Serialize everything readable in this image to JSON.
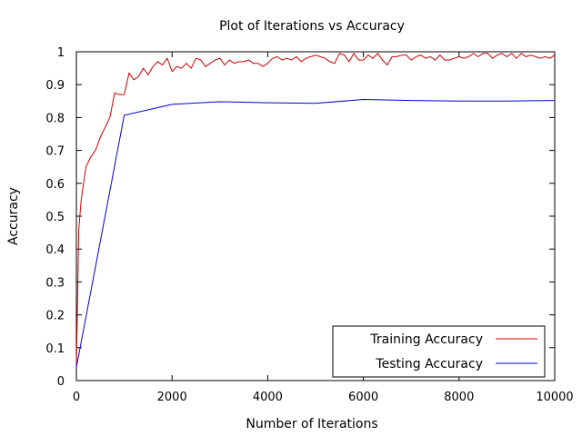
{
  "chart_data": {
    "type": "line",
    "title": "Plot of Iterations vs Accuracy",
    "xlabel": "Number of Iterations",
    "ylabel": "Accuracy",
    "xlim": [
      0,
      10000
    ],
    "ylim": [
      0,
      1
    ],
    "xticks": [
      0,
      2000,
      4000,
      6000,
      8000,
      10000
    ],
    "yticks": [
      0,
      0.1,
      0.2,
      0.3,
      0.4,
      0.5,
      0.6,
      0.7,
      0.8,
      0.9,
      1
    ],
    "grid": false,
    "legend_position": "bottom-right",
    "series": [
      {
        "name": "Training Accuracy",
        "color": "#cc0000",
        "x": [
          0,
          50,
          100,
          200,
          300,
          400,
          500,
          600,
          700,
          800,
          900,
          1000,
          1100,
          1200,
          1300,
          1400,
          1500,
          1600,
          1700,
          1800,
          1900,
          2000,
          2100,
          2200,
          2300,
          2400,
          2500,
          2600,
          2700,
          2800,
          2900,
          3000,
          3100,
          3200,
          3300,
          3400,
          3500,
          3600,
          3700,
          3800,
          3900,
          4000,
          4100,
          4200,
          4300,
          4400,
          4500,
          4600,
          4700,
          4800,
          4900,
          5000,
          5100,
          5200,
          5300,
          5400,
          5500,
          5600,
          5700,
          5800,
          5900,
          6000,
          6100,
          6200,
          6300,
          6400,
          6500,
          6600,
          6700,
          6800,
          6900,
          7000,
          7100,
          7200,
          7300,
          7400,
          7500,
          7600,
          7700,
          7800,
          7900,
          8000,
          8100,
          8200,
          8300,
          8400,
          8500,
          8600,
          8700,
          8800,
          8900,
          9000,
          9100,
          9200,
          9300,
          9400,
          9500,
          9600,
          9700,
          9800,
          9900,
          10000
        ],
        "y": [
          0.04,
          0.46,
          0.55,
          0.65,
          0.68,
          0.7,
          0.74,
          0.77,
          0.8,
          0.875,
          0.87,
          0.87,
          0.935,
          0.915,
          0.925,
          0.95,
          0.93,
          0.955,
          0.97,
          0.96,
          0.98,
          0.94,
          0.955,
          0.95,
          0.965,
          0.95,
          0.98,
          0.975,
          0.955,
          0.965,
          0.975,
          0.98,
          0.96,
          0.975,
          0.965,
          0.97,
          0.97,
          0.975,
          0.965,
          0.965,
          0.955,
          0.965,
          0.98,
          0.985,
          0.975,
          0.98,
          0.975,
          0.985,
          0.97,
          0.98,
          0.985,
          0.99,
          0.985,
          0.98,
          0.97,
          0.965,
          0.995,
          0.99,
          0.97,
          0.995,
          0.975,
          0.975,
          0.99,
          0.98,
          0.995,
          0.975,
          0.96,
          0.985,
          0.985,
          0.99,
          0.99,
          0.975,
          0.985,
          0.99,
          0.98,
          0.985,
          0.975,
          0.99,
          0.975,
          0.975,
          0.98,
          0.985,
          0.98,
          0.985,
          0.995,
          0.985,
          0.995,
          0.995,
          0.98,
          0.99,
          0.995,
          0.985,
          0.995,
          0.98,
          0.995,
          0.985,
          0.99,
          0.985,
          0.98,
          0.985,
          0.98,
          0.99
        ]
      },
      {
        "name": "Testing Accuracy",
        "color": "#0000cc",
        "x": [
          0,
          1000,
          2000,
          3000,
          4000,
          5000,
          6000,
          7000,
          8000,
          9000,
          10000
        ],
        "y": [
          0.04,
          0.807,
          0.84,
          0.848,
          0.845,
          0.843,
          0.855,
          0.852,
          0.85,
          0.85,
          0.852
        ]
      }
    ]
  }
}
